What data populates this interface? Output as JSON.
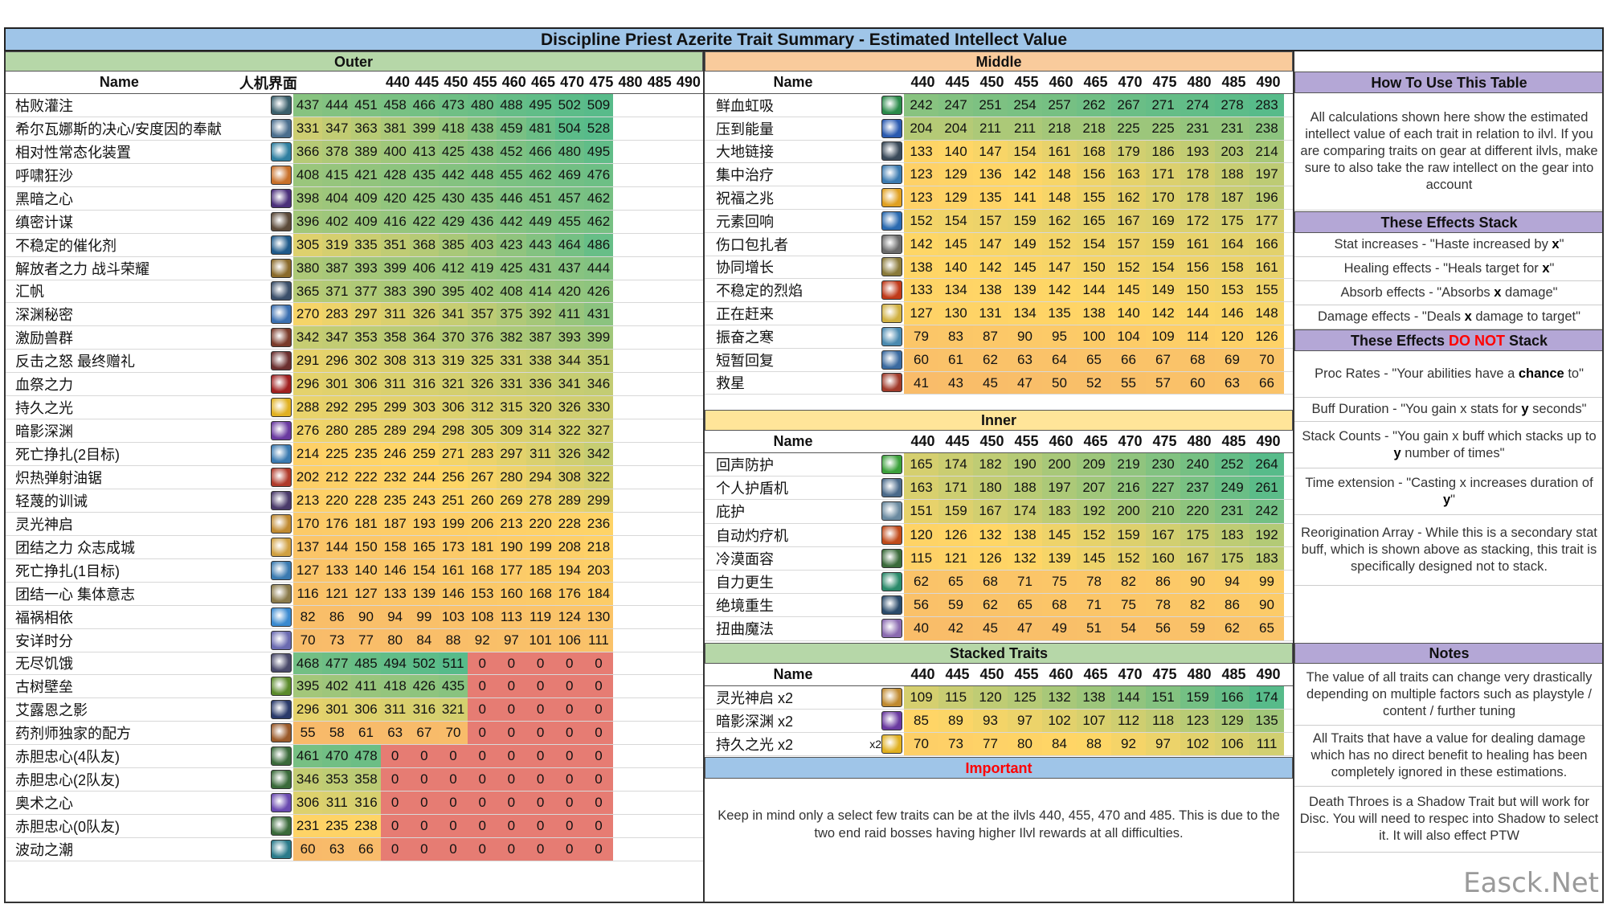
{
  "title": "Discipline Priest Azerite Trait Summary - Estimated Intellect Value",
  "ilvls": [
    "440",
    "445",
    "450",
    "455",
    "460",
    "465",
    "470",
    "475",
    "480",
    "485",
    "490"
  ],
  "outer": {
    "section_title": "Outer",
    "header_name": "Name",
    "header_extra": "人机界面",
    "rows": [
      {
        "name": "枯败灌注",
        "icon": "#3a5f6b",
        "v": [
          437,
          444,
          451,
          458,
          466,
          473,
          480,
          488,
          495,
          502,
          509
        ]
      },
      {
        "name": "希尔瓦娜斯的决心/安度因的奉献",
        "icon": "#4b6e8e",
        "v": [
          331,
          347,
          363,
          381,
          399,
          418,
          438,
          459,
          481,
          504,
          528
        ]
      },
      {
        "name": "相对性常态化装置",
        "icon": "#2f7fa0",
        "v": [
          366,
          378,
          389,
          400,
          413,
          425,
          438,
          452,
          466,
          480,
          495
        ]
      },
      {
        "name": "呼啸狂沙",
        "icon": "#c8702a",
        "v": [
          408,
          415,
          421,
          428,
          435,
          442,
          448,
          455,
          462,
          469,
          476
        ]
      },
      {
        "name": "黑暗之心",
        "icon": "#4a2f7a",
        "v": [
          398,
          404,
          409,
          420,
          425,
          430,
          435,
          446,
          451,
          457,
          462
        ]
      },
      {
        "name": "缜密计谋",
        "icon": "#5c4a3a",
        "v": [
          396,
          402,
          409,
          416,
          422,
          429,
          436,
          442,
          449,
          455,
          462
        ]
      },
      {
        "name": "不稳定的催化剂",
        "icon": "#1f5a8a",
        "v": [
          305,
          319,
          335,
          351,
          368,
          385,
          403,
          423,
          443,
          464,
          486
        ]
      },
      {
        "name": "解放者之力    战斗荣耀",
        "icon": "#8a6a2a",
        "v": [
          380,
          387,
          393,
          399,
          406,
          412,
          419,
          425,
          431,
          437,
          444
        ]
      },
      {
        "name": "汇帆",
        "icon": "#3b4f6a",
        "v": [
          365,
          371,
          377,
          383,
          390,
          395,
          402,
          408,
          414,
          420,
          426
        ]
      },
      {
        "name": "深渊秘密",
        "icon": "#3a6fb0",
        "v": [
          270,
          283,
          297,
          311,
          326,
          341,
          357,
          375,
          392,
          411,
          431
        ]
      },
      {
        "name": "激励兽群",
        "icon": "#7a3a2a",
        "v": [
          342,
          347,
          353,
          358,
          364,
          370,
          376,
          382,
          387,
          393,
          399
        ]
      },
      {
        "name": "反击之怒    最终赠礼",
        "icon": "#6b2f2f",
        "v": [
          291,
          296,
          302,
          308,
          313,
          319,
          325,
          331,
          338,
          344,
          351
        ]
      },
      {
        "name": "血祭之力",
        "icon": "#a02020",
        "v": [
          296,
          301,
          306,
          311,
          316,
          321,
          326,
          331,
          336,
          341,
          346
        ]
      },
      {
        "name": "持久之光",
        "icon": "#e0b020",
        "v": [
          288,
          292,
          295,
          299,
          303,
          306,
          312,
          315,
          320,
          326,
          330
        ]
      },
      {
        "name": "暗影深渊",
        "icon": "#6a3aa0",
        "v": [
          276,
          280,
          285,
          289,
          294,
          298,
          305,
          309,
          314,
          322,
          327
        ]
      },
      {
        "name": "死亡挣扎(2目标)",
        "icon": "#3a7ab0",
        "v": [
          214,
          225,
          235,
          246,
          259,
          271,
          283,
          297,
          311,
          326,
          342
        ]
      },
      {
        "name": "炽热弹射油锯",
        "icon": "#b03a2a",
        "v": [
          202,
          212,
          222,
          232,
          244,
          256,
          267,
          280,
          294,
          308,
          322
        ]
      },
      {
        "name": "轻蔑的训诫",
        "icon": "#4a3a6a",
        "v": [
          213,
          220,
          228,
          235,
          243,
          251,
          260,
          269,
          278,
          289,
          299
        ]
      },
      {
        "name": "灵光神启",
        "icon": "#c08a30",
        "v": [
          170,
          176,
          181,
          187,
          193,
          199,
          206,
          213,
          220,
          228,
          236
        ]
      },
      {
        "name": "团结之力     众志成城",
        "icon": "#d0a040",
        "v": [
          137,
          144,
          150,
          158,
          165,
          173,
          181,
          190,
          199,
          208,
          218
        ]
      },
      {
        "name": "死亡挣扎(1目标)",
        "icon": "#3a7ab0",
        "v": [
          127,
          133,
          140,
          146,
          154,
          161,
          168,
          177,
          185,
          194,
          203
        ]
      },
      {
        "name": "团结一心     集体意志",
        "icon": "#8a7a4a",
        "v": [
          116,
          121,
          127,
          133,
          139,
          146,
          153,
          160,
          168,
          176,
          184
        ]
      },
      {
        "name": "福祸相依",
        "icon": "#3a8ad0",
        "v": [
          82,
          86,
          90,
          94,
          99,
          103,
          108,
          113,
          119,
          124,
          130
        ]
      },
      {
        "name": "安详时分",
        "icon": "#6a6ab0",
        "v": [
          70,
          73,
          77,
          80,
          84,
          88,
          92,
          97,
          101,
          106,
          111
        ]
      },
      {
        "name": "无尽饥饿",
        "icon": "#4a4a6a",
        "v": [
          468,
          477,
          485,
          494,
          502,
          511,
          0,
          0,
          0,
          0,
          0
        ]
      },
      {
        "name": "古树壁垒",
        "icon": "#5a8a2a",
        "v": [
          395,
          402,
          411,
          418,
          426,
          435,
          0,
          0,
          0,
          0,
          0
        ]
      },
      {
        "name": "艾露恩之影",
        "icon": "#2a3a6a",
        "v": [
          296,
          301,
          306,
          311,
          316,
          321,
          0,
          0,
          0,
          0,
          0
        ]
      },
      {
        "name": "药剂师独家的配方",
        "icon": "#9a5a2a",
        "v": [
          55,
          58,
          61,
          63,
          67,
          70,
          0,
          0,
          0,
          0,
          0
        ]
      },
      {
        "name": "赤胆忠心(4队友)",
        "icon": "#3a6a3a",
        "v": [
          461,
          470,
          478,
          0,
          0,
          0,
          0,
          0,
          0,
          0,
          0
        ]
      },
      {
        "name": "赤胆忠心(2队友)",
        "icon": "#3a6a3a",
        "v": [
          346,
          353,
          358,
          0,
          0,
          0,
          0,
          0,
          0,
          0,
          0
        ]
      },
      {
        "name": "奥术之心",
        "icon": "#6a4ab0",
        "v": [
          306,
          311,
          316,
          0,
          0,
          0,
          0,
          0,
          0,
          0,
          0
        ]
      },
      {
        "name": "赤胆忠心(0队友)",
        "icon": "#3a6a3a",
        "v": [
          231,
          235,
          238,
          0,
          0,
          0,
          0,
          0,
          0,
          0,
          0
        ]
      },
      {
        "name": "波动之潮",
        "icon": "#2a7a8a",
        "v": [
          60,
          63,
          66,
          0,
          0,
          0,
          0,
          0,
          0,
          0,
          0
        ]
      }
    ]
  },
  "middle": {
    "section_title": "Middle",
    "header_name": "Name",
    "rows": [
      {
        "name": "鲜血虹吸",
        "icon": "#2a8a4a",
        "v": [
          242,
          247,
          251,
          254,
          257,
          262,
          267,
          271,
          274,
          278,
          283
        ]
      },
      {
        "name": "压到能量",
        "icon": "#2a5ab0",
        "v": [
          204,
          204,
          211,
          211,
          218,
          218,
          225,
          225,
          231,
          231,
          238
        ]
      },
      {
        "name": "大地链接",
        "icon": "#3a4a5a",
        "v": [
          133,
          140,
          147,
          154,
          161,
          168,
          179,
          186,
          193,
          203,
          214
        ]
      },
      {
        "name": "集中治疗",
        "icon": "#3a7ab0",
        "v": [
          123,
          129,
          136,
          142,
          148,
          156,
          163,
          171,
          178,
          188,
          197
        ]
      },
      {
        "name": "祝福之兆",
        "icon": "#e0a020",
        "v": [
          123,
          129,
          135,
          141,
          148,
          155,
          162,
          170,
          178,
          187,
          196
        ]
      },
      {
        "name": "元素回响",
        "icon": "#2a6ab0",
        "v": [
          152,
          154,
          157,
          159,
          162,
          165,
          167,
          169,
          172,
          175,
          177
        ]
      },
      {
        "name": "伤口包扎者",
        "icon": "#6a6a6a",
        "v": [
          142,
          145,
          147,
          149,
          152,
          154,
          157,
          159,
          161,
          164,
          166
        ]
      },
      {
        "name": "协同增长",
        "icon": "#8a7a3a",
        "v": [
          138,
          140,
          142,
          145,
          147,
          150,
          152,
          154,
          156,
          158,
          161
        ]
      },
      {
        "name": "不稳定的烈焰",
        "icon": "#c03a1a",
        "v": [
          133,
          134,
          138,
          139,
          142,
          144,
          145,
          149,
          150,
          153,
          155
        ]
      },
      {
        "name": "正在赶来",
        "icon": "#d0b040",
        "v": [
          127,
          130,
          131,
          134,
          135,
          138,
          140,
          142,
          144,
          146,
          148
        ]
      },
      {
        "name": "振奋之寒",
        "icon": "#4a8ab0",
        "v": [
          79,
          83,
          87,
          90,
          95,
          100,
          104,
          109,
          114,
          120,
          126
        ]
      },
      {
        "name": "短暂回复",
        "icon": "#3a6aa0",
        "v": [
          60,
          61,
          62,
          63,
          64,
          65,
          66,
          67,
          68,
          69,
          70
        ]
      },
      {
        "name": "救星",
        "icon": "#a03a2a",
        "v": [
          41,
          43,
          45,
          47,
          50,
          52,
          55,
          57,
          60,
          63,
          66
        ]
      }
    ]
  },
  "inner": {
    "section_title": "Inner",
    "header_name": "Name",
    "rows": [
      {
        "name": "回声防护",
        "icon": "#3aa03a",
        "v": [
          165,
          174,
          182,
          190,
          200,
          209,
          219,
          230,
          240,
          252,
          264
        ]
      },
      {
        "name": "个人护盾机",
        "icon": "#4a6a8a",
        "v": [
          163,
          171,
          180,
          188,
          197,
          207,
          216,
          227,
          237,
          249,
          261
        ]
      },
      {
        "name": "庇护",
        "icon": "#6a8aa0",
        "v": [
          151,
          159,
          167,
          174,
          183,
          192,
          200,
          210,
          220,
          231,
          242
        ]
      },
      {
        "name": "自动灼疗机",
        "icon": "#c04a1a",
        "v": [
          120,
          126,
          132,
          138,
          145,
          152,
          159,
          167,
          175,
          183,
          192
        ]
      },
      {
        "name": "冷漠面容",
        "icon": "#3a6a3a",
        "v": [
          115,
          121,
          126,
          132,
          139,
          145,
          152,
          160,
          167,
          175,
          183
        ]
      },
      {
        "name": "自力更生",
        "icon": "#2a8a6a",
        "v": [
          62,
          65,
          68,
          71,
          75,
          78,
          82,
          86,
          90,
          94,
          99
        ]
      },
      {
        "name": "绝境重生",
        "icon": "#2a4a6a",
        "v": [
          56,
          59,
          62,
          65,
          68,
          71,
          75,
          78,
          82,
          86,
          90
        ]
      },
      {
        "name": "扭曲魔法",
        "icon": "#8a6ab0",
        "v": [
          40,
          42,
          45,
          47,
          49,
          51,
          54,
          56,
          59,
          62,
          65
        ]
      }
    ]
  },
  "stacked": {
    "section_title": "Stacked Traits",
    "header_name": "Name",
    "rows": [
      {
        "name": "灵光神启 x2",
        "tag": "",
        "icon": "#c08a30",
        "v": [
          109,
          115,
          120,
          125,
          132,
          138,
          144,
          151,
          159,
          166,
          174
        ]
      },
      {
        "name": "暗影深渊 x2",
        "tag": "",
        "icon": "#6a3aa0",
        "v": [
          85,
          89,
          93,
          97,
          102,
          107,
          112,
          118,
          123,
          129,
          135
        ]
      },
      {
        "name": "持久之光 x2",
        "tag": "x2",
        "icon": "#e0b020",
        "v": [
          70,
          73,
          77,
          80,
          84,
          88,
          92,
          97,
          102,
          106,
          111
        ]
      }
    ]
  },
  "important": {
    "title": "Important",
    "text": "Keep in mind only a select few traits can be at the ilvls 440, 455, 470 and 485. This is due to the two end raid bosses having higher Ilvl rewards at all difficulties."
  },
  "howto": {
    "title": "How To Use This Table",
    "text": "All calculations shown here show the estimated intellect value of each trait in relation to ilvl. If you are comparing traits on gear at different ilvls, make sure to also take the raw intellect on the gear into account"
  },
  "stack": {
    "title": "These Effects Stack",
    "items": [
      {
        "pre": "Stat increases - \"Haste increased by ",
        "bold": "x",
        "post": "\""
      },
      {
        "pre": "Healing effects - \"Heals target for ",
        "bold": "x",
        "post": "\""
      },
      {
        "pre": "Absorb effects - \"Absorbs ",
        "bold": "x",
        "post": " damage\""
      },
      {
        "pre": "Damage effects - \"Deals ",
        "bold": "x",
        "post": " damage to target\""
      }
    ]
  },
  "nostack": {
    "title_pre": "These Effects ",
    "title_red": "DO NOT",
    "title_post": " Stack",
    "items": [
      {
        "pre": "Proc Rates - \"Your abilities have a ",
        "bold": "chance",
        "post": " to\""
      },
      {
        "pre": "Buff Duration - \"You gain x stats for ",
        "bold": "y",
        "post": " seconds\""
      },
      {
        "pre": "Stack Counts - \"You gain x buff which stacks up to ",
        "bold": "y",
        "post": " number of times\""
      },
      {
        "pre": "Time extension - \"Casting x increases duration of ",
        "bold": "y",
        "post": "\""
      },
      {
        "pre": "Reorigination Array - While this is a secondary stat buff, which is shown above as stacking, this trait is specifically designed not to stack.",
        "bold": "",
        "post": ""
      }
    ]
  },
  "notes": {
    "title": "Notes",
    "items": [
      "The value of all traits can change very drastically depending on multiple factors such as playstyle / content / further tuning",
      "All Traits that have a value for dealing damage which has no direct benefit to healing has been completely ignored in these estimations.",
      "Death Throes is a Shadow Trait but will work for Disc. You will need to respec into Shadow to select it. It will also effect PTW"
    ]
  },
  "colors": {
    "title_bg": "#9fc5e8",
    "outer_bg": "#b6d7a8",
    "middle_bg": "#f9cb9c",
    "inner_bg": "#ffe599",
    "stacked_bg": "#b6d7a8",
    "side_bg": "#b4a7d6",
    "important_bg": "#9fc5e8"
  },
  "watermark": "Easck.Net"
}
